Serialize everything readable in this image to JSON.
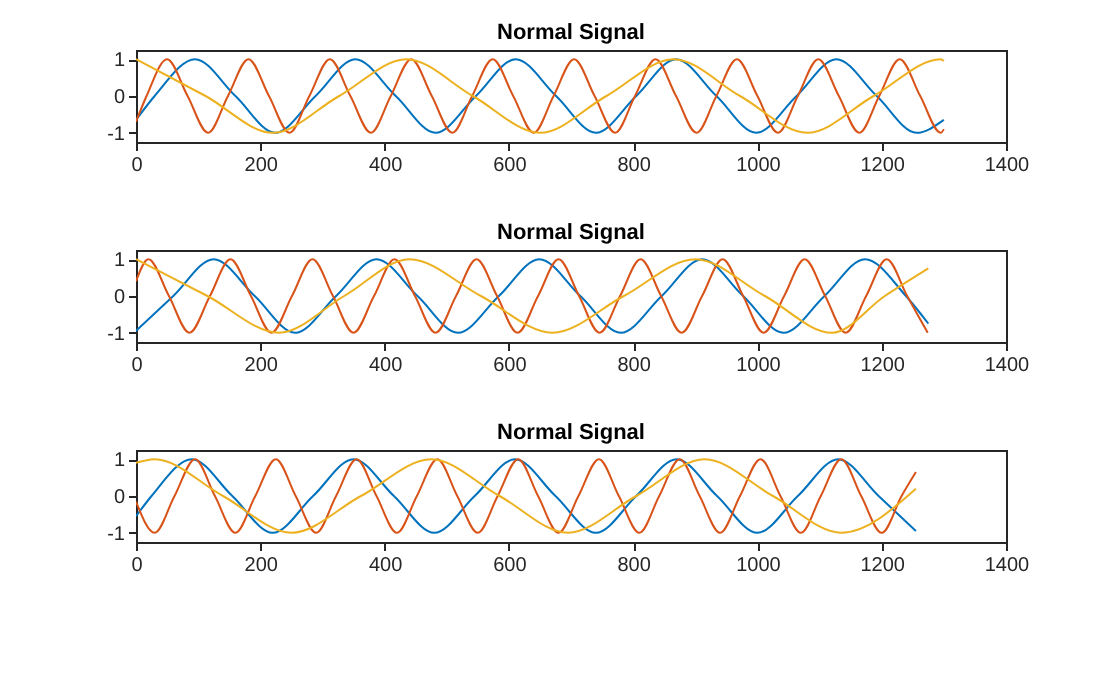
{
  "chart_data": [
    {
      "type": "line",
      "title": "Normal Signal",
      "xlim": [
        0,
        1400
      ],
      "xticks": [
        0,
        200,
        400,
        600,
        800,
        1000,
        1200,
        1400
      ],
      "ylim": [
        -1.25,
        1.25
      ],
      "yticks": [
        -1,
        0,
        1
      ],
      "series": [
        {
          "color": "#0072bd",
          "x": [
            0,
            30,
            95,
            160,
            224,
            289,
            353,
            418,
            482,
            547,
            611,
            676,
            740,
            805,
            869,
            934,
            998,
            1063,
            1127,
            1192,
            1256,
            1300
          ],
          "values": [
            -0.65,
            0,
            1,
            0,
            -1,
            0,
            1,
            0,
            -1,
            0,
            1,
            0,
            -1,
            0,
            1,
            0,
            -1,
            0,
            1,
            0,
            -1,
            -0.65
          ]
        },
        {
          "color": "#d95319",
          "x": [
            0,
            17,
            50,
            83,
            116,
            148,
            181,
            214,
            247,
            279,
            312,
            345,
            378,
            410,
            443,
            476,
            509,
            541,
            574,
            607,
            640,
            672,
            705,
            738,
            771,
            803,
            836,
            869,
            902,
            934,
            967,
            1000,
            1033,
            1065,
            1098,
            1131,
            1164,
            1196,
            1229,
            1262,
            1295,
            1300
          ],
          "values": [
            -0.7,
            0,
            1,
            0,
            -1,
            0,
            1,
            0,
            -1,
            0,
            1,
            0,
            -1,
            0,
            1,
            0,
            -1,
            0,
            1,
            0,
            -1,
            0,
            1,
            0,
            -1,
            0,
            1,
            0,
            -1,
            0,
            1,
            0,
            -1,
            0,
            1,
            0,
            -1,
            0,
            1,
            0,
            -1,
            -0.9
          ]
        },
        {
          "color": "#edb120",
          "x": [
            0,
            112,
            220,
            327,
            435,
            542,
            650,
            757,
            865,
            972,
            1080,
            1187,
            1295,
            1300
          ],
          "values": [
            1,
            0,
            -1,
            0,
            1,
            0,
            -1,
            0,
            1,
            0,
            -1,
            0,
            1,
            0.95
          ]
        }
      ]
    },
    {
      "type": "line",
      "title": "Normal Signal",
      "xlim": [
        0,
        1400
      ],
      "xticks": [
        0,
        200,
        400,
        600,
        800,
        1000,
        1200,
        1400
      ],
      "ylim": [
        -1.25,
        1.25
      ],
      "yticks": [
        -1,
        0,
        1
      ],
      "series": [
        {
          "color": "#0072bd",
          "x": [
            0,
            60,
            125,
            191,
            256,
            322,
            387,
            453,
            518,
            584,
            649,
            715,
            780,
            846,
            911,
            977,
            1042,
            1108,
            1173,
            1239,
            1275
          ],
          "values": [
            -0.95,
            0,
            1,
            0,
            -1,
            0,
            1,
            0,
            -1,
            0,
            1,
            0,
            -1,
            0,
            1,
            0,
            -1,
            0,
            1,
            0,
            -0.75
          ]
        },
        {
          "color": "#d95319",
          "x": [
            0,
            20,
            53,
            86,
            119,
            152,
            185,
            218,
            251,
            284,
            317,
            350,
            383,
            416,
            449,
            482,
            515,
            548,
            581,
            614,
            647,
            680,
            713,
            746,
            779,
            812,
            845,
            878,
            911,
            944,
            977,
            1010,
            1043,
            1076,
            1109,
            1142,
            1175,
            1208,
            1241,
            1274
          ],
          "values": [
            0.4,
            1,
            0,
            -1,
            0,
            1,
            0,
            -1,
            0,
            1,
            0,
            -1,
            0,
            1,
            0,
            -1,
            0,
            1,
            0,
            -1,
            0,
            1,
            0,
            -1,
            0,
            1,
            0,
            -1,
            0,
            1,
            0,
            -1,
            0,
            1,
            0,
            -1,
            0,
            1,
            0,
            -1
          ]
        },
        {
          "color": "#edb120",
          "x": [
            0,
            115,
            230,
            335,
            440,
            555,
            670,
            785,
            900,
            1012,
            1120,
            1205,
            1275
          ],
          "values": [
            1,
            0,
            -1,
            0,
            1,
            0,
            -1,
            0,
            1,
            0,
            -1,
            0,
            0.75
          ]
        }
      ]
    },
    {
      "type": "line",
      "title": "Normal Signal",
      "xlim": [
        0,
        1400
      ],
      "xticks": [
        0,
        200,
        400,
        600,
        800,
        1000,
        1200,
        1400
      ],
      "ylim": [
        -1.25,
        1.25
      ],
      "yticks": [
        -1,
        0,
        1
      ],
      "series": [
        {
          "color": "#0072bd",
          "x": [
            0,
            25,
            90,
            155,
            220,
            285,
            350,
            415,
            480,
            545,
            610,
            675,
            740,
            805,
            870,
            935,
            1000,
            1065,
            1130,
            1195,
            1255
          ],
          "values": [
            -0.55,
            0,
            1,
            0,
            -1,
            0,
            1,
            0,
            -1,
            0,
            1,
            0,
            -1,
            0,
            1,
            0,
            -1,
            0,
            1,
            0,
            -0.95
          ]
        },
        {
          "color": "#d95319",
          "x": [
            0,
            30,
            62,
            95,
            127,
            160,
            192,
            225,
            257,
            290,
            322,
            355,
            387,
            420,
            452,
            485,
            517,
            550,
            582,
            615,
            647,
            680,
            712,
            745,
            777,
            810,
            842,
            875,
            907,
            940,
            972,
            1005,
            1037,
            1070,
            1102,
            1135,
            1167,
            1200,
            1232,
            1255
          ],
          "values": [
            -0.15,
            -1,
            0,
            1,
            0,
            -1,
            0,
            1,
            0,
            -1,
            0,
            1,
            0,
            -1,
            0,
            1,
            0,
            -1,
            0,
            1,
            0,
            -1,
            0,
            1,
            0,
            -1,
            0,
            1,
            0,
            -1,
            0,
            1,
            0,
            -1,
            0,
            1,
            0,
            -1,
            0,
            0.65
          ]
        },
        {
          "color": "#edb120",
          "x": [
            0,
            30,
            140,
            250,
            362,
            475,
            585,
            695,
            805,
            915,
            1025,
            1135,
            1255
          ],
          "values": [
            0.9,
            1,
            0,
            -1,
            0,
            1,
            0,
            -1,
            0,
            1,
            0,
            -1,
            0.2
          ]
        }
      ]
    }
  ]
}
